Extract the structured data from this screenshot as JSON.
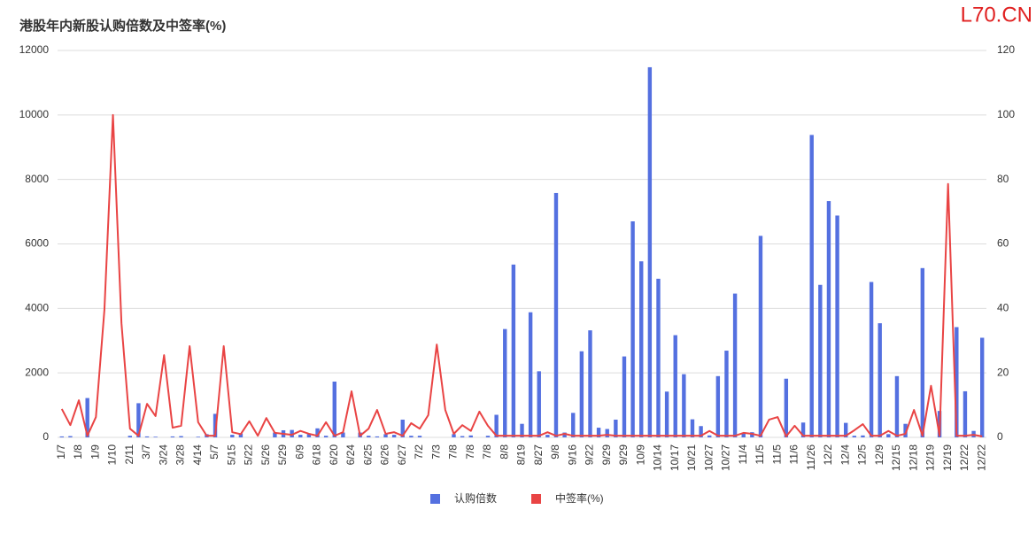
{
  "chart_data": {
    "type": "bar_line",
    "title": "港股年内新股认购倍数及中签率(%)",
    "watermark": "L70.CN",
    "categories": [
      "1/7",
      null,
      "1/8",
      null,
      "1/9",
      null,
      "1/10",
      null,
      "2/11",
      null,
      "3/7",
      null,
      "3/24",
      null,
      "3/28",
      null,
      "4/14",
      null,
      "5/7",
      null,
      "5/15",
      null,
      "5/22",
      null,
      "5/26",
      null,
      "5/29",
      null,
      "6/9",
      null,
      "6/18",
      null,
      "6/20",
      null,
      "6/24",
      null,
      "6/25",
      null,
      "6/26",
      null,
      "6/27",
      null,
      "7/2",
      null,
      "7/3",
      null,
      "7/8",
      null,
      "7/8",
      null,
      "7/8",
      null,
      "8/8",
      null,
      "8/19",
      null,
      "8/27",
      null,
      "9/8",
      null,
      "9/16",
      null,
      "9/22",
      null,
      "9/29",
      null,
      "9/29",
      null,
      "10/9",
      null,
      "10/14",
      null,
      "10/17",
      null,
      "10/21",
      null,
      "10/27",
      null,
      "10/27",
      null,
      "11/4",
      null,
      "11/5",
      null,
      "11/5",
      null,
      "11/6",
      null,
      "11/26",
      null,
      "12/2",
      null,
      "12/4",
      null,
      "12/5",
      null,
      "12/9",
      null,
      "12/15",
      null,
      "12/18",
      null,
      "12/19",
      null,
      "12/19",
      null,
      "12/22",
      null,
      "12/22"
    ],
    "series": [
      {
        "name": "认购倍数",
        "color": "#5470e0",
        "kind": "bar",
        "values": [
          30,
          40,
          0,
          1220,
          0,
          0,
          0,
          0,
          50,
          1060,
          30,
          20,
          0,
          30,
          40,
          0,
          20,
          100,
          730,
          0,
          80,
          120,
          0,
          0,
          0,
          150,
          220,
          230,
          80,
          120,
          280,
          50,
          1730,
          150,
          0,
          150,
          50,
          30,
          100,
          80,
          550,
          50,
          50,
          0,
          0,
          0,
          100,
          40,
          60,
          0,
          50,
          700,
          3360,
          5360,
          420,
          3880,
          2050,
          80,
          7580,
          150,
          760,
          2670,
          3320,
          300,
          260,
          550,
          2510,
          6700,
          5460,
          11480,
          4920,
          1420,
          3170,
          1960,
          560,
          350,
          60,
          1900,
          2690,
          4460,
          120,
          160,
          6250,
          0,
          0,
          1820,
          0,
          460,
          9380,
          4730,
          7330,
          6880,
          450,
          50,
          60,
          4820,
          3540,
          100,
          1900,
          420,
          0,
          5250,
          0,
          820,
          0,
          3420,
          1430,
          200,
          3090
        ]
      },
      {
        "name": "中签率(%)",
        "color": "#e94444",
        "kind": "line",
        "axis": "y2",
        "values": [
          8.8,
          3.8,
          11.5,
          0.5,
          6.3,
          39.6,
          100,
          35.4,
          2.7,
          0.5,
          10.4,
          6.6,
          25.5,
          3,
          3.6,
          28.3,
          4.7,
          0.5,
          0.5,
          28.3,
          1.6,
          1,
          5,
          0.5,
          6,
          1.4,
          1.1,
          0.8,
          2,
          1.1,
          0.5,
          4.7,
          0.5,
          1.6,
          14.3,
          0.5,
          2.7,
          8.5,
          1.1,
          1.6,
          0.5,
          4.4,
          2.7,
          6.9,
          28.8,
          8.5,
          1.1,
          3.8,
          2,
          8,
          3.6,
          0.5,
          0.5,
          0.5,
          0.5,
          0.5,
          0.5,
          1.6,
          0.5,
          1.1,
          0.5,
          0.5,
          0.5,
          0.5,
          0.8,
          0.5,
          0.5,
          0.5,
          0.5,
          0.5,
          0.5,
          0.5,
          0.5,
          0.5,
          0.5,
          0.5,
          2,
          0.5,
          0.5,
          0.5,
          1.4,
          1.1,
          0.5,
          5.5,
          6.3,
          0.3,
          3.6,
          0.5,
          0.5,
          0.5,
          0.5,
          0.5,
          0.5,
          2.2,
          4.1,
          0.5,
          0.5,
          2,
          0.5,
          1.1,
          8.5,
          0.5,
          16,
          0.5,
          78.6,
          0.5,
          0.5,
          0.8,
          0.3
        ]
      }
    ],
    "ylim": [
      0,
      12000
    ],
    "yticks": [
      0,
      2000,
      4000,
      6000,
      8000,
      10000,
      12000
    ],
    "y2lim": [
      0,
      120
    ],
    "y2ticks": [
      0,
      20,
      40,
      60,
      80,
      100,
      120
    ],
    "grid": true,
    "legend": "bottom"
  }
}
